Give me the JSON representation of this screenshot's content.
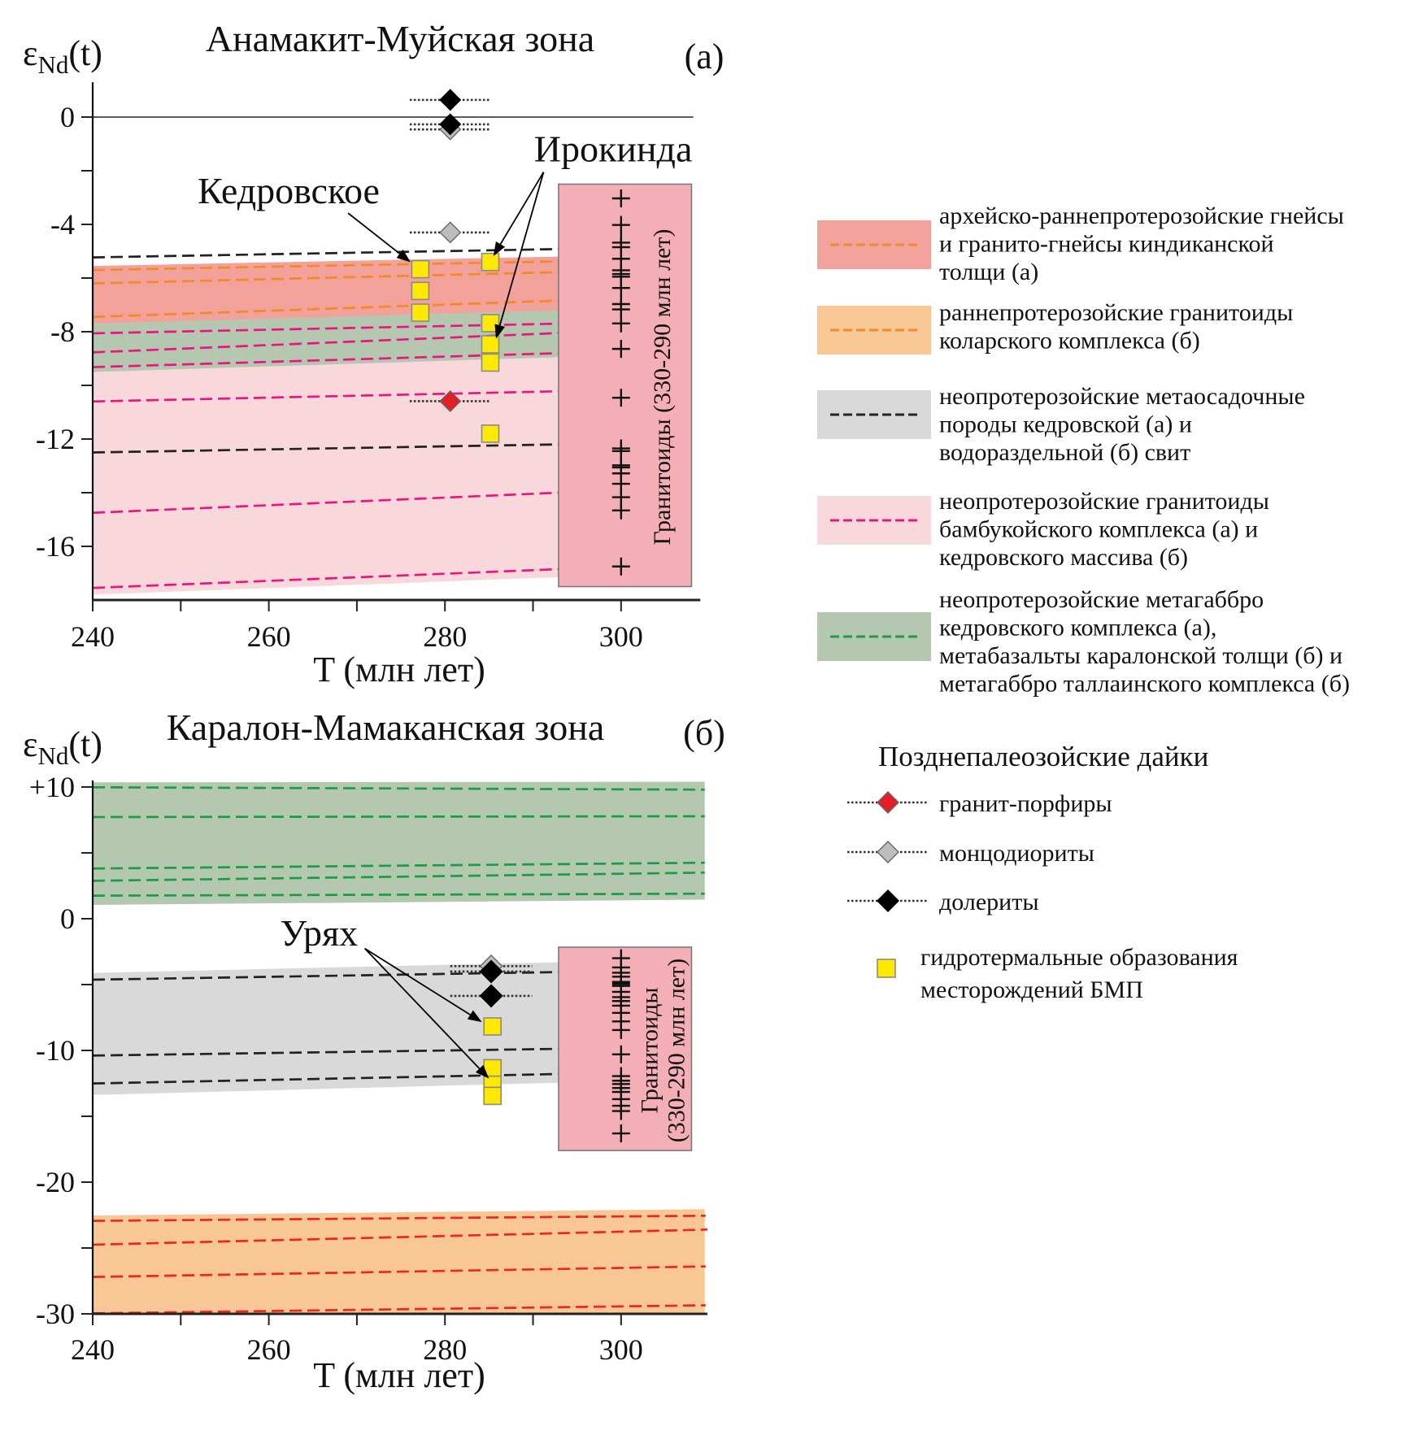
{
  "legend": {
    "bands": [
      {
        "lines": [
          "архейско-раннепротерозойские гнейсы",
          "и гранито-гнейсы киндиканской",
          "толщи (а)"
        ],
        "fill": "#F2A19B",
        "dash": "#F28A2B"
      },
      {
        "lines": [
          "раннепротерозойские гранитоиды",
          "коларского комплекса (б)"
        ],
        "fill": "#F9C795",
        "dash": "#F28A2B"
      },
      {
        "lines": [
          "неопротерозойские метаосадочные",
          "породы кедровской (а) и",
          "водораздельной (б) свит"
        ],
        "fill": "#D9D9D9",
        "dash": "#222222"
      },
      {
        "lines": [
          "неопротерозойские гранитоиды",
          "бамбукойского комплекса (а) и",
          "кедровского массива (б)"
        ],
        "fill": "#F9D8DC",
        "dash": "#E8177F"
      },
      {
        "lines": [
          "неопротерозойские метагаббро",
          "кедровского комплекса (а),",
          "метабазальты каралонской толщи (б) и",
          "метагаббро таллаинского комплекса (б)"
        ],
        "fill": "#B4C8AF",
        "dash": "#1E9B45"
      }
    ],
    "dikes_title": "Позднепалеозойские дайки",
    "dikes": [
      {
        "type": "granite-porphyry",
        "label": "гранит-порфиры",
        "fill": "#E31E24"
      },
      {
        "type": "monzodiorite",
        "label": "монцодиориты",
        "fill": "#BDBDBD"
      },
      {
        "type": "dolerite",
        "label": "долериты",
        "fill": "#000000"
      }
    ],
    "hydrothermal": {
      "lines": [
        "гидротермальные образования",
        "месторождений БМП"
      ],
      "fill": "#FFE900"
    }
  },
  "chart_data": [
    {
      "type": "scatter",
      "panel_label": "(а)",
      "title": "Анамакит-Муйская зона",
      "ylabel": {
        "symbol": "ε",
        "sub": "Nd",
        "suffix": "(t)"
      },
      "xlabel": "T (млн лет)",
      "xlim": [
        240,
        309
      ],
      "ylim": [
        -18,
        1.3
      ],
      "xticks": [
        {
          "v": 240,
          "label": "240"
        },
        {
          "v": 260,
          "label": "260"
        },
        {
          "v": 280,
          "label": "280"
        },
        {
          "v": 300,
          "label": "300"
        }
      ],
      "xminor": [
        250,
        270,
        290
      ],
      "yticks": [
        {
          "v": 0,
          "label": "0"
        },
        {
          "v": -4,
          "label": "-4"
        },
        {
          "v": -8,
          "label": "-8"
        },
        {
          "v": -12,
          "label": "-12"
        },
        {
          "v": -16,
          "label": "-16"
        }
      ],
      "yminor": [
        -2,
        -6,
        -10,
        -14
      ],
      "zero_line": true,
      "bands": [
        {
          "unit": "neoproterozoic-granitoids",
          "t": [
            240,
            292.9
          ],
          "top": [
            -7.7,
            -7.2
          ],
          "bottom": [
            -17.8,
            -17.15
          ],
          "fill": "#F9D8DC"
        },
        {
          "unit": "archean-gneisses",
          "t": [
            240,
            292.9
          ],
          "top": [
            -5.55,
            -5.2
          ],
          "bottom": [
            -7.7,
            -7.25
          ],
          "fill": "#F2A19B"
        },
        {
          "unit": "neoproterozoic-metagabbro",
          "t": [
            240,
            292.9
          ],
          "top": [
            -7.7,
            -7.2
          ],
          "bottom": [
            -9.5,
            -8.95
          ],
          "fill": "#B4C8AF"
        }
      ],
      "isolines": [
        {
          "unit": "archean-gneisses",
          "t": [
            240,
            292.9
          ],
          "e": [
            -5.7,
            -5.38
          ],
          "color": "#F28A2B"
        },
        {
          "unit": "archean-gneisses",
          "t": [
            240,
            292.9
          ],
          "e": [
            -6.2,
            -5.78
          ],
          "color": "#F28A2B"
        },
        {
          "unit": "archean-gneisses",
          "t": [
            240,
            292.9
          ],
          "e": [
            -7.45,
            -6.84
          ],
          "color": "#F28A2B"
        },
        {
          "unit": "neoproterozoic-granitoids",
          "t": [
            240,
            292.9
          ],
          "e": [
            -8.06,
            -7.7
          ],
          "color": "#E8177F"
        },
        {
          "unit": "neoproterozoic-granitoids",
          "t": [
            240,
            292.9
          ],
          "e": [
            -8.77,
            -8.05
          ],
          "color": "#E8177F"
        },
        {
          "unit": "neoproterozoic-granitoids",
          "t": [
            240,
            292.9
          ],
          "e": [
            -9.32,
            -8.8
          ],
          "color": "#E8177F"
        },
        {
          "unit": "neoproterozoic-granitoids",
          "t": [
            240,
            292.9
          ],
          "e": [
            -10.6,
            -10.22
          ],
          "color": "#E8177F"
        },
        {
          "unit": "neoproterozoic-granitoids",
          "t": [
            240,
            292.9
          ],
          "e": [
            -14.75,
            -14.0
          ],
          "color": "#E8177F"
        },
        {
          "unit": "neoproterozoic-granitoids",
          "t": [
            240,
            292.9
          ],
          "e": [
            -17.55,
            -16.85
          ],
          "color": "#E8177F"
        },
        {
          "unit": "neoproterozoic-metasediments",
          "t": [
            240,
            292.9
          ],
          "e": [
            -5.23,
            -4.92
          ],
          "color": "#222222"
        },
        {
          "unit": "neoproterozoic-metasediments",
          "t": [
            240,
            292.9
          ],
          "e": [
            -12.5,
            -12.2
          ],
          "color": "#222222"
        }
      ],
      "granitoid_box": {
        "t": [
          292.9,
          308
        ],
        "e": [
          -2.5,
          -17.5
        ],
        "fill": "#F4AEB5",
        "label_lines": [
          "Гранитоиды (330-290 млн лет)"
        ],
        "cross_t": 300,
        "crosses": [
          -3.03,
          -4.02,
          -4.68,
          -4.85,
          -5.28,
          -5.71,
          -5.85,
          -5.95,
          -6.37,
          -6.97,
          -7.17,
          -7.69,
          -8.64,
          -10.46,
          -12.35,
          -12.45,
          -12.98,
          -13.06,
          -13.28,
          -13.67,
          -14.17,
          -14.66,
          -16.75
        ]
      },
      "dikes": [
        {
          "type": "dolerite",
          "t": 280.6,
          "e": 0.64,
          "t_err": 4.6
        },
        {
          "type": "monzodiorite",
          "t": 280.6,
          "e": -0.46,
          "t_err": 4.6
        },
        {
          "type": "dolerite",
          "t": 280.6,
          "e": -0.27,
          "t_err": 4.6
        },
        {
          "type": "monzodiorite",
          "t": 280.6,
          "e": -4.3,
          "t_err": 4.6
        },
        {
          "type": "granite-porphyry",
          "t": 280.6,
          "e": -10.59,
          "t_err": 4.6
        }
      ],
      "hydrothermal": [
        {
          "t": 277.2,
          "e": -5.67
        },
        {
          "t": 277.2,
          "e": -6.48
        },
        {
          "t": 277.2,
          "e": -7.29
        },
        {
          "t": 285.15,
          "e": -5.4
        },
        {
          "t": 285.15,
          "e": -7.68
        },
        {
          "t": 285.15,
          "e": -8.47
        },
        {
          "t": 285.15,
          "e": -9.15
        },
        {
          "t": 285.15,
          "e": -11.8
        }
      ],
      "annotations": [
        {
          "text": "Кедровское",
          "at": [
            262.25,
            -3.21
          ],
          "arrows": [
            {
              "from": [
                269.0,
                -3.58
              ],
              "to": [
                276.1,
                -5.41
              ]
            }
          ]
        },
        {
          "text": "Ирокинда",
          "at": [
            299.1,
            -1.65
          ],
          "arrows": [
            {
              "from": [
                291.2,
                -2.05
              ],
              "to": [
                285.5,
                -5.18
              ]
            },
            {
              "from": [
                291.2,
                -2.05
              ],
              "to": [
                285.8,
                -8.26
              ]
            }
          ]
        }
      ]
    },
    {
      "type": "scatter",
      "panel_label": "(б)",
      "title": "Каралон-Мамаканская зона",
      "ylabel": {
        "symbol": "ε",
        "sub": "Nd",
        "suffix": "(t)"
      },
      "xlabel": "T (млн лет)",
      "xlim": [
        240,
        309.8
      ],
      "ylim": [
        -30,
        10.5
      ],
      "xticks": [
        {
          "v": 240,
          "label": "240"
        },
        {
          "v": 260,
          "label": "260"
        },
        {
          "v": 280,
          "label": "280"
        },
        {
          "v": 300,
          "label": "300"
        }
      ],
      "xminor": [
        250,
        270,
        290
      ],
      "yticks": [
        {
          "v": 10,
          "label": "+10"
        },
        {
          "v": 0,
          "label": "0"
        },
        {
          "v": -10,
          "label": "-10"
        },
        {
          "v": -20,
          "label": "-20"
        },
        {
          "v": -30,
          "label": "-30"
        }
      ],
      "yminor": [
        5,
        -5,
        -15,
        -25
      ],
      "zero_line": false,
      "bands": [
        {
          "unit": "metabasalts-metagabbro",
          "t": [
            240,
            309.5
          ],
          "top": [
            10.35,
            10.4
          ],
          "bottom": [
            1.05,
            1.45
          ],
          "fill": "#B4C8AF"
        },
        {
          "unit": "neoproterozoic-metasediments",
          "t": [
            240,
            292.9
          ],
          "top": [
            -4.12,
            -3.3
          ],
          "bottom": [
            -13.38,
            -12.45
          ],
          "fill": "#D9D9D9"
        },
        {
          "unit": "early-proterozoic-granitoids",
          "t": [
            240,
            309.5
          ],
          "top": [
            -22.53,
            -22.05
          ],
          "bottom": [
            -30,
            -29.9
          ],
          "fill": "#F9C795"
        }
      ],
      "isolines": [
        {
          "unit": "metabasalts-metagabbro",
          "t": [
            240,
            309.5
          ],
          "e": [
            9.98,
            9.8
          ],
          "color": "#1E9B45"
        },
        {
          "unit": "metabasalts-metagabbro",
          "t": [
            240,
            309.5
          ],
          "e": [
            7.72,
            7.78
          ],
          "color": "#1E9B45"
        },
        {
          "unit": "metabasalts-metagabbro",
          "t": [
            240,
            309.5
          ],
          "e": [
            3.81,
            4.25
          ],
          "color": "#1E9B45"
        },
        {
          "unit": "metabasalts-metagabbro",
          "t": [
            240,
            309.5
          ],
          "e": [
            2.88,
            3.5
          ],
          "color": "#1E9B45"
        },
        {
          "unit": "metabasalts-metagabbro",
          "t": [
            240,
            309.5
          ],
          "e": [
            1.75,
            1.9
          ],
          "color": "#1E9B45"
        },
        {
          "unit": "neoproterozoic-metasediments",
          "t": [
            240,
            292.9
          ],
          "e": [
            -4.63,
            -4.05
          ],
          "color": "#222222"
        },
        {
          "unit": "neoproterozoic-metasediments",
          "t": [
            240,
            292.9
          ],
          "e": [
            -10.39,
            -9.88
          ],
          "color": "#222222"
        },
        {
          "unit": "neoproterozoic-metasediments",
          "t": [
            240,
            292.9
          ],
          "e": [
            -12.51,
            -11.79
          ],
          "color": "#222222"
        },
        {
          "unit": "early-proterozoic-granitoids",
          "t": [
            240,
            309.6
          ],
          "e": [
            -22.94,
            -22.55
          ],
          "color": "#E8291C"
        },
        {
          "unit": "early-proterozoic-granitoids",
          "t": [
            240,
            309.8
          ],
          "e": [
            -24.75,
            -23.6
          ],
          "color": "#E8291C"
        },
        {
          "unit": "early-proterozoic-granitoids",
          "t": [
            240,
            309.6
          ],
          "e": [
            -27.2,
            -26.4
          ],
          "color": "#E8291C"
        },
        {
          "unit": "early-proterozoic-granitoids",
          "t": [
            240,
            309.6
          ],
          "e": [
            -29.96,
            -29.35
          ],
          "color": "#E8291C"
        }
      ],
      "granitoid_box": {
        "t": [
          292.9,
          308
        ],
        "e": [
          -2.16,
          -17.6
        ],
        "fill": "#F4AEB5",
        "label_lines": [
          "Гранитоиды",
          "(330-290 млн лет)"
        ],
        "cross_t": 300,
        "crosses": [
          -3.0,
          -3.7,
          -4.1,
          -4.4,
          -4.8,
          -4.95,
          -5.1,
          -5.55,
          -5.95,
          -6.25,
          -6.6,
          -7.15,
          -7.8,
          -8.45,
          -10.3,
          -11.95,
          -12.3,
          -12.55,
          -12.85,
          -13.15,
          -13.7,
          -14.2,
          -14.6,
          -16.3
        ]
      },
      "dikes": [
        {
          "type": "monzodiorite",
          "t": 285.25,
          "e": -3.6,
          "t_err": 4.65
        },
        {
          "type": "dolerite",
          "t": 285.25,
          "e": -4.01,
          "t_err": 4.65
        },
        {
          "type": "dolerite",
          "t": 285.25,
          "e": -5.86,
          "t_err": 4.65
        }
      ],
      "hydrothermal": [
        {
          "t": 285.4,
          "e": -8.18
        },
        {
          "t": 285.4,
          "e": -11.35
        },
        {
          "t": 285.4,
          "e": -12.6
        },
        {
          "t": 285.4,
          "e": -13.45
        }
      ],
      "annotations": [
        {
          "text": "Урях",
          "at": [
            265.7,
            -2.05
          ],
          "arrows": [
            {
              "from": [
                270.9,
                -2.26
              ],
              "to": [
                284.2,
                -7.85
              ]
            },
            {
              "from": [
                270.9,
                -2.26
              ],
              "to": [
                285.0,
                -12.14
              ]
            }
          ]
        }
      ]
    }
  ]
}
